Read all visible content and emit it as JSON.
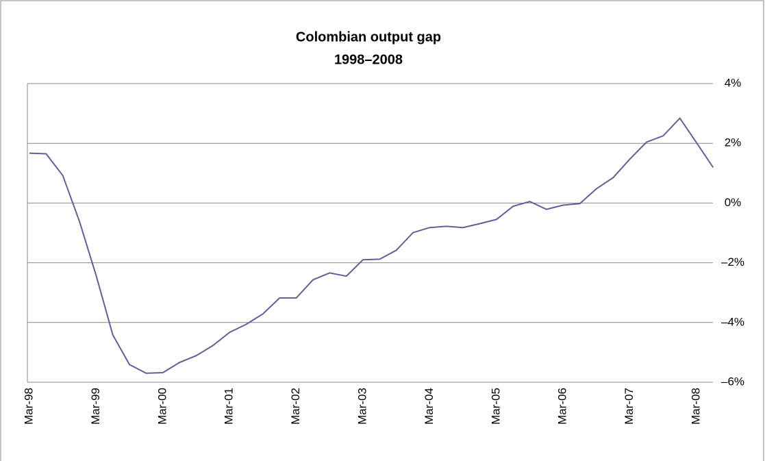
{
  "chart_data": {
    "type": "line",
    "title": "Colombian output gap",
    "subtitle": "1998–2008",
    "categories": [
      "Mar-98",
      null,
      null,
      null,
      "Mar-99",
      null,
      null,
      null,
      "Mar-00",
      null,
      null,
      null,
      "Mar-01",
      null,
      null,
      null,
      "Mar-02",
      null,
      null,
      null,
      "Mar-03",
      null,
      null,
      null,
      "Mar-04",
      null,
      null,
      null,
      "Mar-05",
      null,
      null,
      null,
      "Mar-06",
      null,
      null,
      null,
      "Mar-07",
      null,
      null,
      null,
      "Mar-08",
      null
    ],
    "series": [
      {
        "color": "#5f5f99",
        "values": [
          1.67,
          1.65,
          0.92,
          -0.62,
          -2.43,
          -4.42,
          -5.41,
          -5.7,
          -5.68,
          -5.34,
          -5.11,
          -4.77,
          -4.33,
          -4.06,
          -3.71,
          -3.18,
          -3.18,
          -2.57,
          -2.34,
          -2.45,
          -1.9,
          -1.88,
          -1.58,
          -0.99,
          -0.82,
          -0.78,
          -0.82,
          -0.69,
          -0.55,
          -0.11,
          0.05,
          -0.21,
          -0.07,
          -0.02,
          0.48,
          0.85,
          1.47,
          2.04,
          2.25,
          2.84,
          2.02,
          1.19
        ]
      }
    ],
    "ylim": [
      -6,
      4
    ],
    "yticks": [
      {
        "value": -6,
        "label": "–6%"
      },
      {
        "value": -4,
        "label": "–4%"
      },
      {
        "value": -2,
        "label": "–2%"
      },
      {
        "value": 0,
        "label": "0%"
      },
      {
        "value": 2,
        "label": "2%"
      },
      {
        "value": 4,
        "label": "4%"
      }
    ],
    "grid": true
  }
}
